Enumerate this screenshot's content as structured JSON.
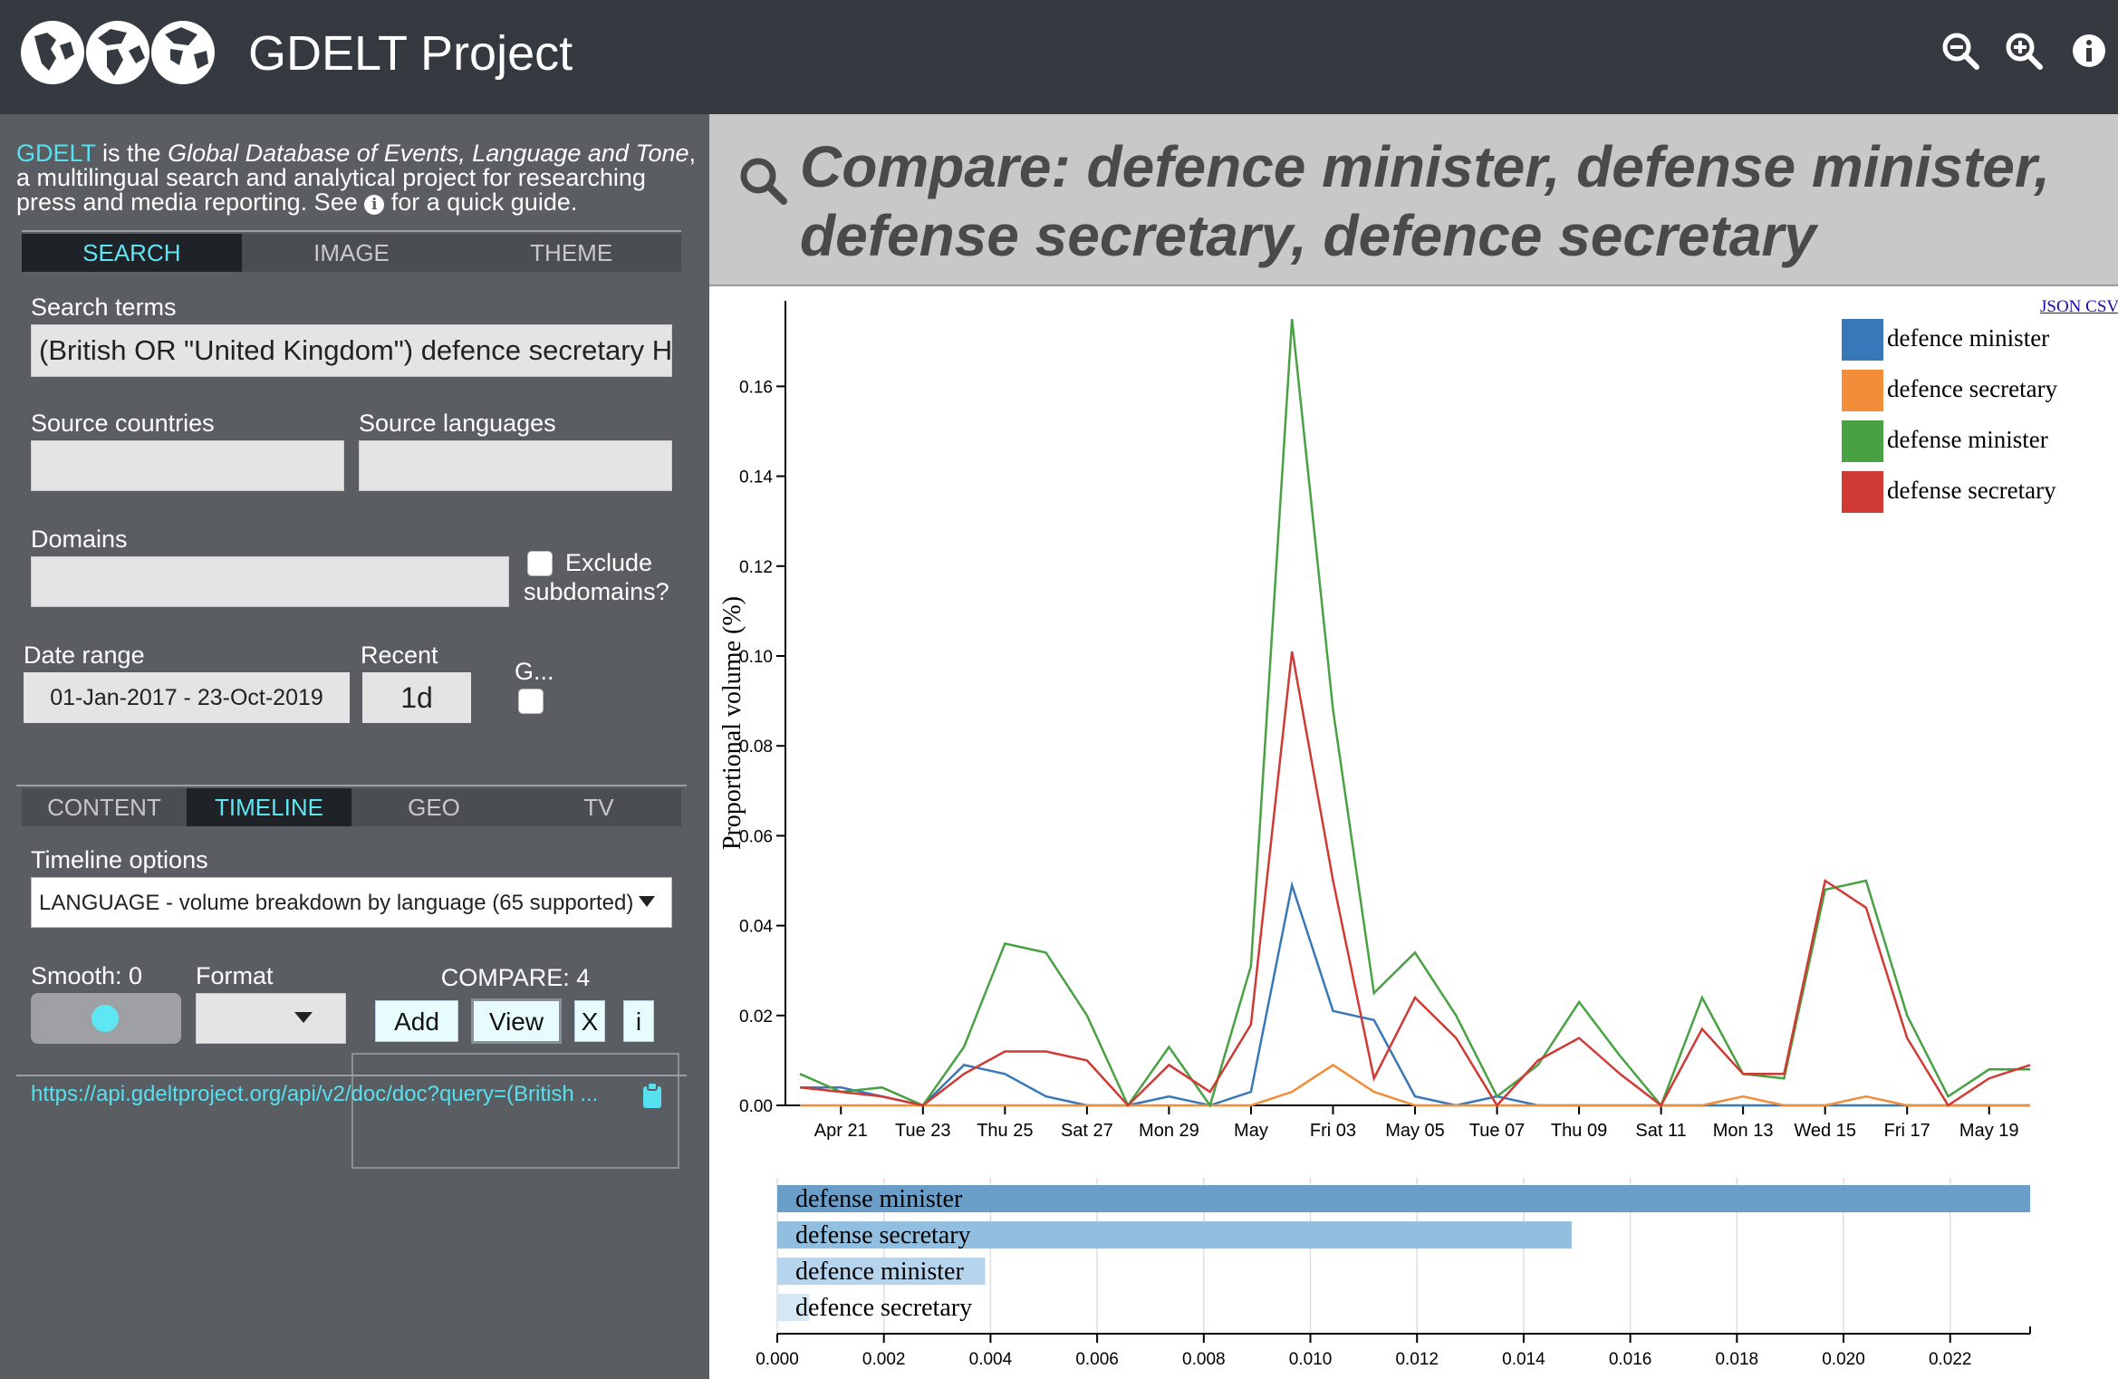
{
  "header": {
    "title": "GDELT Project",
    "icons": [
      "zoom-out-icon",
      "zoom-in-icon",
      "info-icon"
    ]
  },
  "intro": {
    "brand": "GDELT",
    "part1": " is the ",
    "italic": "Global Database of Events, Language and Tone",
    "part2": ", a multilingual search and analytical project for researching press and media reporting. See ",
    "info_glyph": "i",
    "part3": " for a quick guide."
  },
  "mode_tabs": [
    "SEARCH",
    "IMAGE",
    "THEME"
  ],
  "form": {
    "search_terms_label": "Search terms",
    "search_terms_value": "(British OR \"United Kingdom\") defence secretary H",
    "source_countries_label": "Source countries",
    "source_languages_label": "Source languages",
    "domains_label": "Domains",
    "exclude_subdomains_label1": "Exclude",
    "exclude_subdomains_label2": "subdomains?",
    "date_range_label": "Date range",
    "date_range_value": "01-Jan-2017 - 23-Oct-2019",
    "recent_label": "Recent",
    "recent_value": "1d",
    "g_label": "G..."
  },
  "output_tabs": [
    "CONTENT",
    "TIMELINE",
    "GEO",
    "TV"
  ],
  "timeline": {
    "options_label": "Timeline options",
    "options_value": "LANGUAGE - volume breakdown by language (65 supported)",
    "smooth_label": "Smooth: 0",
    "format_label": "Format",
    "compare_label": "COMPARE: 4",
    "add_label": "Add",
    "view_label": "View",
    "x_label": "X",
    "i_label": "i"
  },
  "api_url": "https://api.gdeltproject.org/api/v2/doc/doc?query=(British ...",
  "query": {
    "title_line1": "Compare: defence minister, defense minister,",
    "title_line2": "defense secretary, defence secretary"
  },
  "export": {
    "json": "JSON",
    "csv": "CSV"
  },
  "colors": {
    "accent": "#57e0f0",
    "blue": "#3878b8",
    "orange": "#f28e3a",
    "green": "#48a143",
    "red": "#d03a35"
  },
  "chart_data": [
    {
      "type": "line",
      "ylabel": "Proportional volume (%)",
      "ylim": [
        0,
        0.175
      ],
      "yticks": [
        0,
        0.02,
        0.04,
        0.06,
        0.08,
        0.1,
        0.12,
        0.14,
        0.16
      ],
      "ytick_labels": [
        "0.00",
        "0.02",
        "0.04",
        "0.06",
        "0.08",
        "0.10",
        "0.12",
        "0.14",
        "0.16"
      ],
      "x_start": "2019-04-20",
      "x_end": "2019-05-20",
      "xtick_dates": [
        "2019-04-21",
        "2019-04-23",
        "2019-04-25",
        "2019-04-27",
        "2019-04-29",
        "2019-05-01",
        "2019-05-03",
        "2019-05-05",
        "2019-05-07",
        "2019-05-09",
        "2019-05-11",
        "2019-05-13",
        "2019-05-15",
        "2019-05-17",
        "2019-05-19"
      ],
      "xtick_labels": [
        "Apr 21",
        "Tue 23",
        "Thu 25",
        "Sat 27",
        "Mon 29",
        "May",
        "Fri 03",
        "May 05",
        "Tue 07",
        "Thu 09",
        "Sat 11",
        "Mon 13",
        "Wed 15",
        "Fri 17",
        "May 19"
      ],
      "x": [
        "2019-04-20",
        "2019-04-21",
        "2019-04-22",
        "2019-04-23",
        "2019-04-24",
        "2019-04-25",
        "2019-04-26",
        "2019-04-27",
        "2019-04-28",
        "2019-04-29",
        "2019-04-30",
        "2019-05-01",
        "2019-05-02",
        "2019-05-03",
        "2019-05-04",
        "2019-05-05",
        "2019-05-06",
        "2019-05-07",
        "2019-05-08",
        "2019-05-09",
        "2019-05-10",
        "2019-05-11",
        "2019-05-12",
        "2019-05-13",
        "2019-05-14",
        "2019-05-15",
        "2019-05-16",
        "2019-05-17",
        "2019-05-18",
        "2019-05-19",
        "2019-05-20"
      ],
      "legend_position": "top-right",
      "series": [
        {
          "name": "defence minister",
          "color": "#3878b8",
          "values": [
            0.004,
            0.004,
            0.002,
            0,
            0.009,
            0.007,
            0.002,
            0,
            0,
            0.002,
            0,
            0.003,
            0.049,
            0.021,
            0.019,
            0.002,
            0,
            0.002,
            0,
            0,
            0,
            0,
            0,
            0,
            0,
            0,
            0,
            0,
            0,
            0,
            0
          ]
        },
        {
          "name": "defence secretary",
          "color": "#f28e3a",
          "values": [
            0,
            0,
            0,
            0,
            0,
            0,
            0,
            0,
            0,
            0,
            0,
            0,
            0.003,
            0.009,
            0.003,
            0,
            0,
            0,
            0,
            0,
            0,
            0,
            0,
            0.002,
            0,
            0,
            0.002,
            0,
            0,
            0,
            0
          ]
        },
        {
          "name": "defense minister",
          "color": "#48a143",
          "values": [
            0.007,
            0.003,
            0.004,
            0,
            0.013,
            0.036,
            0.034,
            0.02,
            0,
            0.013,
            0,
            0.031,
            0.175,
            0.088,
            0.025,
            0.034,
            0.02,
            0.002,
            0.009,
            0.023,
            0.011,
            0,
            0.024,
            0.007,
            0.006,
            0.048,
            0.05,
            0.02,
            0.002,
            0.008,
            0.008
          ]
        },
        {
          "name": "defense secretary",
          "color": "#d03a35",
          "values": [
            0.004,
            0.003,
            0.002,
            0,
            0.007,
            0.012,
            0.012,
            0.01,
            0,
            0.009,
            0.003,
            0.018,
            0.101,
            0.05,
            0.006,
            0.024,
            0.015,
            0,
            0.01,
            0.015,
            0.007,
            0,
            0.017,
            0.007,
            0.007,
            0.05,
            0.044,
            0.015,
            0,
            0.006,
            0.009
          ]
        }
      ]
    },
    {
      "type": "bar",
      "orientation": "horizontal",
      "xlim": [
        0,
        0.0235
      ],
      "xticks": [
        0,
        0.002,
        0.004,
        0.006,
        0.008,
        0.01,
        0.012,
        0.014,
        0.016,
        0.018,
        0.02,
        0.022
      ],
      "xtick_labels": [
        "0.000",
        "0.002",
        "0.004",
        "0.006",
        "0.008",
        "0.010",
        "0.012",
        "0.014",
        "0.016",
        "0.018",
        "0.020",
        "0.022"
      ],
      "categories": [
        "defense minister",
        "defense secretary",
        "defence minister",
        "defence secretary"
      ],
      "values": [
        0.0235,
        0.0149,
        0.0039,
        0.0006
      ],
      "colors": [
        "#6a9ec9",
        "#92bfe0",
        "#b6d4ec",
        "#d6e7f4"
      ]
    }
  ]
}
